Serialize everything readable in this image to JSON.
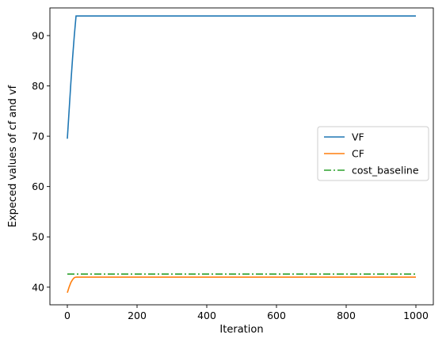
{
  "chart_data": {
    "type": "line",
    "title": "",
    "xlabel": "Iteration",
    "ylabel": "Expeced values of cf and vf",
    "xlim": [
      -50,
      1050
    ],
    "ylim": [
      36.5,
      95.5
    ],
    "xticks": [
      0,
      200,
      400,
      600,
      800,
      1000
    ],
    "yticks": [
      40,
      50,
      60,
      70,
      80,
      90
    ],
    "legend_position": "center-right",
    "grid": false,
    "series": [
      {
        "name": "VF",
        "color": "#1f77b4",
        "style": "solid",
        "x": [
          0,
          5,
          10,
          15,
          20,
          25,
          1000
        ],
        "y": [
          69.5,
          75.0,
          80.5,
          85.5,
          90.0,
          93.9,
          93.9
        ]
      },
      {
        "name": "CF",
        "color": "#ff7f0e",
        "style": "solid",
        "x": [
          0,
          5,
          10,
          15,
          20,
          25,
          1000
        ],
        "y": [
          38.9,
          40.0,
          40.9,
          41.5,
          41.9,
          42.0,
          42.0
        ]
      },
      {
        "name": "cost_baseline",
        "color": "#2ca02c",
        "style": "dashdot",
        "x": [
          0,
          1000
        ],
        "y": [
          42.6,
          42.6
        ]
      }
    ]
  }
}
